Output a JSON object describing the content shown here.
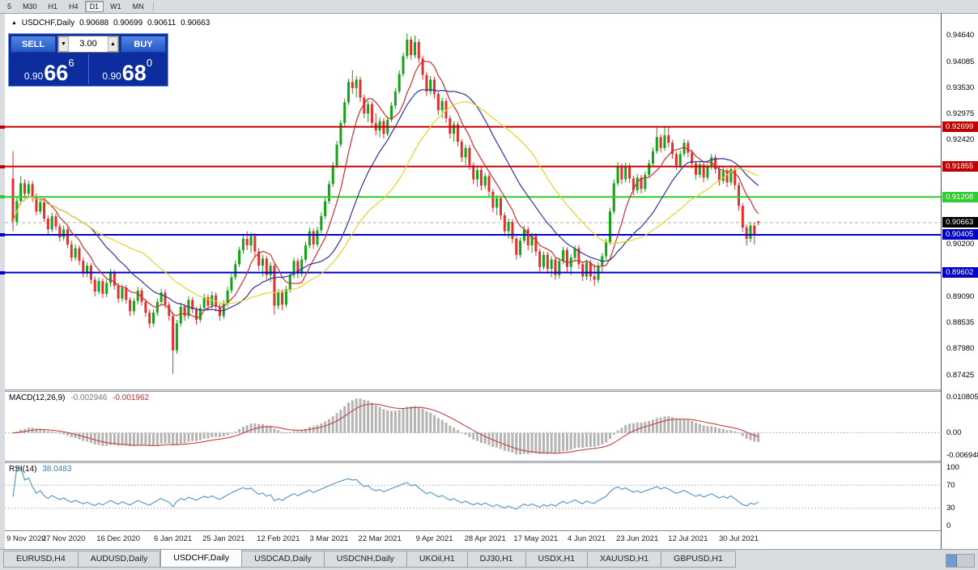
{
  "toolbar": {
    "timeframes": [
      "5",
      "M30",
      "H1",
      "H4",
      "D1",
      "W1",
      "MN"
    ],
    "active": "D1"
  },
  "chart_header": {
    "collapse_icon": "▲",
    "symbol_title": "USDCHF,Daily",
    "open": "0.90688",
    "high": "0.90699",
    "low": "0.90611",
    "close": "0.90663"
  },
  "trade_panel": {
    "sell_label": "SELL",
    "buy_label": "BUY",
    "volume": "3.00",
    "spinner_down": "▼",
    "spinner_up": "▲",
    "sell_price_prefix": "0.90",
    "sell_price_big": "66",
    "sell_price_sup": "6",
    "buy_price_prefix": "0.90",
    "buy_price_big": "68",
    "buy_price_sup": "0"
  },
  "price_axis_ticks": [
    0.9464,
    0.94085,
    0.9353,
    0.92975,
    0.9242,
    0.902,
    0.8909,
    0.88535,
    0.8798,
    0.87425
  ],
  "current_price": {
    "value": 0.90663,
    "label": "0.90663",
    "badge_color": "#000000"
  },
  "indicators": {
    "macd": {
      "title": "MACD(12,26,9)",
      "main_value": "-0.002946",
      "signal_value": "-0.001962",
      "axis": [
        {
          "value": 0.010805,
          "label": "0.010805"
        },
        {
          "value": 0,
          "label": "0.00"
        },
        {
          "value": -0.006948,
          "label": "-0.006948"
        }
      ]
    },
    "rsi": {
      "title": "RSI(14)",
      "value": "38.0483",
      "axis": [
        {
          "value": 100,
          "label": "100"
        },
        {
          "value": 70,
          "label": "70"
        },
        {
          "value": 30,
          "label": "30"
        },
        {
          "value": 0,
          "label": "0"
        }
      ],
      "dashed_levels": [
        70,
        30
      ]
    }
  },
  "colors": {
    "bull": "#16a216",
    "bear": "#e03030",
    "macd_hist": "#b4b4b4",
    "macd_signal": "#c24444",
    "rsi_line": "#4a94c8",
    "dashed": "#b8b8b8"
  },
  "chart_data": {
    "type": "candlestick",
    "symbol": "USDCHF",
    "timeframe": "Daily",
    "ylim": [
      0.8712,
      0.951
    ],
    "bid_line": 0.90663,
    "x_ticks": [
      {
        "index": 0,
        "label": "9 Nov 2020"
      },
      {
        "index": 13,
        "label": "27 Nov 2020"
      },
      {
        "index": 27,
        "label": "16 Dec 2020"
      },
      {
        "index": 41,
        "label": "6 Jan 2021"
      },
      {
        "index": 54,
        "label": "25 Jan 2021"
      },
      {
        "index": 68,
        "label": "12 Feb 2021"
      },
      {
        "index": 81,
        "label": "3 Mar 2021"
      },
      {
        "index": 94,
        "label": "22 Mar 2021"
      },
      {
        "index": 108,
        "label": "9 Apr 2021"
      },
      {
        "index": 121,
        "label": "28 Apr 2021"
      },
      {
        "index": 134,
        "label": "17 May 2021"
      },
      {
        "index": 147,
        "label": "4 Jun 2021"
      },
      {
        "index": 160,
        "label": "23 Jun 2021"
      },
      {
        "index": 173,
        "label": "12 Jul 2021"
      },
      {
        "index": 186,
        "label": "30 Jul 2021"
      }
    ],
    "horizontal_lines": [
      {
        "price": 0.92699,
        "color": "#c00000"
      },
      {
        "price": 0.91855,
        "color": "#c00000"
      },
      {
        "price": 0.91208,
        "color": "#2ecc2e"
      },
      {
        "price": 0.90405,
        "color": "#0000c8"
      },
      {
        "price": 0.89602,
        "color": "#0000c8"
      }
    ],
    "moving_averages": [
      {
        "period": 8,
        "color": "#cc2f2f"
      },
      {
        "period": 20,
        "color": "#333399"
      },
      {
        "period": 34,
        "color": "#e8d22e"
      }
    ],
    "macd": {
      "fast": 12,
      "slow": 26,
      "signal": 9,
      "ylim": [
        -0.0085,
        0.0125
      ]
    },
    "rsi": {
      "period": 14,
      "ylim": [
        -8,
        108
      ]
    },
    "candles": [
      [
        0.916,
        0.9218,
        0.9048,
        0.9068
      ],
      [
        0.9068,
        0.912,
        0.906,
        0.9112
      ],
      [
        0.9112,
        0.9165,
        0.9105,
        0.915
      ],
      [
        0.915,
        0.9158,
        0.9118,
        0.9128
      ],
      [
        0.9128,
        0.9156,
        0.912,
        0.9148
      ],
      [
        0.9148,
        0.9155,
        0.911,
        0.912
      ],
      [
        0.912,
        0.9128,
        0.9082,
        0.909
      ],
      [
        0.909,
        0.9118,
        0.9084,
        0.911
      ],
      [
        0.911,
        0.9116,
        0.9068,
        0.9075
      ],
      [
        0.9075,
        0.9082,
        0.9042,
        0.9052
      ],
      [
        0.9052,
        0.9088,
        0.9046,
        0.908
      ],
      [
        0.908,
        0.9086,
        0.905,
        0.9058
      ],
      [
        0.9058,
        0.9064,
        0.9026,
        0.9035
      ],
      [
        0.9035,
        0.906,
        0.9028,
        0.9052
      ],
      [
        0.9052,
        0.9058,
        0.9012,
        0.902
      ],
      [
        0.902,
        0.9028,
        0.8984,
        0.8992
      ],
      [
        0.8992,
        0.902,
        0.8986,
        0.9012
      ],
      [
        0.9012,
        0.9018,
        0.8976,
        0.8985
      ],
      [
        0.8985,
        0.8992,
        0.895,
        0.8958
      ],
      [
        0.8958,
        0.8982,
        0.895,
        0.8975
      ],
      [
        0.8975,
        0.898,
        0.8936,
        0.8945
      ],
      [
        0.8945,
        0.8952,
        0.891,
        0.892
      ],
      [
        0.892,
        0.895,
        0.8914,
        0.8942
      ],
      [
        0.8942,
        0.8948,
        0.8906,
        0.8915
      ],
      [
        0.8915,
        0.8945,
        0.8908,
        0.8938
      ],
      [
        0.8938,
        0.8968,
        0.893,
        0.896
      ],
      [
        0.896,
        0.8966,
        0.8924,
        0.8932
      ],
      [
        0.8932,
        0.8938,
        0.8896,
        0.8905
      ],
      [
        0.8905,
        0.8935,
        0.8898,
        0.8928
      ],
      [
        0.8928,
        0.8934,
        0.8894,
        0.8902
      ],
      [
        0.8902,
        0.8908,
        0.8868,
        0.8878
      ],
      [
        0.8878,
        0.8906,
        0.887,
        0.89
      ],
      [
        0.89,
        0.893,
        0.8893,
        0.8922
      ],
      [
        0.8922,
        0.8928,
        0.889,
        0.8898
      ],
      [
        0.8898,
        0.8904,
        0.8866,
        0.8875
      ],
      [
        0.8875,
        0.8882,
        0.8842,
        0.8852
      ],
      [
        0.8852,
        0.8882,
        0.8845,
        0.8875
      ],
      [
        0.8875,
        0.8905,
        0.8868,
        0.8898
      ],
      [
        0.8898,
        0.8926,
        0.889,
        0.8918
      ],
      [
        0.8918,
        0.8924,
        0.8884,
        0.8892
      ],
      [
        0.8892,
        0.8898,
        0.8858,
        0.8868
      ],
      [
        0.8868,
        0.8876,
        0.8745,
        0.8795
      ],
      [
        0.8795,
        0.886,
        0.8788,
        0.8852
      ],
      [
        0.8852,
        0.8896,
        0.8845,
        0.8888
      ],
      [
        0.8888,
        0.8894,
        0.8858,
        0.8868
      ],
      [
        0.8868,
        0.891,
        0.8862,
        0.8902
      ],
      [
        0.8902,
        0.8908,
        0.8874,
        0.8882
      ],
      [
        0.8882,
        0.8888,
        0.885,
        0.886
      ],
      [
        0.886,
        0.8892,
        0.8854,
        0.8885
      ],
      [
        0.8885,
        0.8915,
        0.8878,
        0.8908
      ],
      [
        0.8908,
        0.8914,
        0.888,
        0.889
      ],
      [
        0.889,
        0.892,
        0.8884,
        0.8912
      ],
      [
        0.8912,
        0.8918,
        0.8878,
        0.8888
      ],
      [
        0.8888,
        0.8894,
        0.8858,
        0.8868
      ],
      [
        0.8868,
        0.8902,
        0.8862,
        0.8895
      ],
      [
        0.8895,
        0.893,
        0.8888,
        0.8922
      ],
      [
        0.8922,
        0.8958,
        0.8916,
        0.895
      ],
      [
        0.895,
        0.8986,
        0.8944,
        0.8978
      ],
      [
        0.8978,
        0.9015,
        0.8972,
        0.9008
      ],
      [
        0.9008,
        0.904,
        0.9,
        0.9032
      ],
      [
        0.9032,
        0.9048,
        0.9008,
        0.9018
      ],
      [
        0.9018,
        0.9045,
        0.9002,
        0.9038
      ],
      [
        0.9038,
        0.9044,
        0.8995,
        0.9005
      ],
      [
        0.9005,
        0.9012,
        0.8965,
        0.8975
      ],
      [
        0.8975,
        0.8998,
        0.8952,
        0.899
      ],
      [
        0.899,
        0.8996,
        0.8945,
        0.8955
      ],
      [
        0.8955,
        0.8982,
        0.894,
        0.8975
      ],
      [
        0.8975,
        0.8981,
        0.8871,
        0.889
      ],
      [
        0.889,
        0.8925,
        0.8882,
        0.8918
      ],
      [
        0.8918,
        0.8924,
        0.888,
        0.8892
      ],
      [
        0.8892,
        0.8932,
        0.8886,
        0.8925
      ],
      [
        0.8925,
        0.8962,
        0.8918,
        0.8955
      ],
      [
        0.8955,
        0.8992,
        0.8948,
        0.8985
      ],
      [
        0.8985,
        0.8991,
        0.8948,
        0.8958
      ],
      [
        0.8958,
        0.8996,
        0.8952,
        0.8988
      ],
      [
        0.8988,
        0.9026,
        0.8982,
        0.9018
      ],
      [
        0.9018,
        0.9056,
        0.9012,
        0.9048
      ],
      [
        0.9048,
        0.9054,
        0.901,
        0.902
      ],
      [
        0.902,
        0.9058,
        0.9014,
        0.905
      ],
      [
        0.905,
        0.9088,
        0.9044,
        0.908
      ],
      [
        0.908,
        0.912,
        0.9074,
        0.9112
      ],
      [
        0.9112,
        0.9155,
        0.9106,
        0.9148
      ],
      [
        0.9148,
        0.9195,
        0.9142,
        0.9188
      ],
      [
        0.9188,
        0.924,
        0.9182,
        0.9232
      ],
      [
        0.9232,
        0.9285,
        0.9226,
        0.9278
      ],
      [
        0.9278,
        0.933,
        0.9272,
        0.9322
      ],
      [
        0.9322,
        0.9372,
        0.9316,
        0.9365
      ],
      [
        0.9365,
        0.939,
        0.934,
        0.9352
      ],
      [
        0.9352,
        0.9378,
        0.9332,
        0.937
      ],
      [
        0.937,
        0.9376,
        0.9322,
        0.9332
      ],
      [
        0.9332,
        0.9338,
        0.9288,
        0.9298
      ],
      [
        0.9298,
        0.9325,
        0.928,
        0.9318
      ],
      [
        0.9318,
        0.9324,
        0.9268,
        0.9278
      ],
      [
        0.9278,
        0.9298,
        0.9252,
        0.9262
      ],
      [
        0.9262,
        0.929,
        0.9248,
        0.9282
      ],
      [
        0.9282,
        0.9288,
        0.9245,
        0.9255
      ],
      [
        0.9255,
        0.9292,
        0.925,
        0.9285
      ],
      [
        0.9285,
        0.9322,
        0.928,
        0.9315
      ],
      [
        0.9315,
        0.9352,
        0.9308,
        0.9345
      ],
      [
        0.9345,
        0.939,
        0.934,
        0.9382
      ],
      [
        0.9382,
        0.9428,
        0.9376,
        0.942
      ],
      [
        0.942,
        0.9468,
        0.9414,
        0.9455
      ],
      [
        0.9455,
        0.9462,
        0.9412,
        0.9422
      ],
      [
        0.9422,
        0.9464,
        0.9416,
        0.945
      ],
      [
        0.945,
        0.9456,
        0.9405,
        0.9415
      ],
      [
        0.9415,
        0.9421,
        0.937,
        0.938
      ],
      [
        0.938,
        0.9386,
        0.9335,
        0.9345
      ],
      [
        0.9345,
        0.9378,
        0.9338,
        0.937
      ],
      [
        0.937,
        0.9376,
        0.933,
        0.934
      ],
      [
        0.934,
        0.9346,
        0.9295,
        0.9305
      ],
      [
        0.9305,
        0.9332,
        0.9288,
        0.9325
      ],
      [
        0.9325,
        0.9331,
        0.9278,
        0.9288
      ],
      [
        0.9288,
        0.9294,
        0.9245,
        0.9255
      ],
      [
        0.9255,
        0.9282,
        0.9238,
        0.9275
      ],
      [
        0.9275,
        0.9281,
        0.9228,
        0.9238
      ],
      [
        0.9238,
        0.9244,
        0.9195,
        0.9205
      ],
      [
        0.9205,
        0.9232,
        0.9188,
        0.9225
      ],
      [
        0.9225,
        0.9231,
        0.9178,
        0.9188
      ],
      [
        0.9188,
        0.9194,
        0.9148,
        0.9158
      ],
      [
        0.9158,
        0.9185,
        0.9142,
        0.9178
      ],
      [
        0.9178,
        0.9184,
        0.9135,
        0.9145
      ],
      [
        0.9145,
        0.9172,
        0.9138,
        0.9165
      ],
      [
        0.9165,
        0.9171,
        0.9122,
        0.9132
      ],
      [
        0.9132,
        0.9138,
        0.9088,
        0.9098
      ],
      [
        0.9098,
        0.9125,
        0.9082,
        0.9118
      ],
      [
        0.9118,
        0.9124,
        0.9072,
        0.9082
      ],
      [
        0.9082,
        0.9088,
        0.9038,
        0.9048
      ],
      [
        0.9048,
        0.9075,
        0.9032,
        0.9068
      ],
      [
        0.9068,
        0.9074,
        0.9022,
        0.9032
      ],
      [
        0.9032,
        0.9038,
        0.8988,
        0.8998
      ],
      [
        0.8998,
        0.9035,
        0.8992,
        0.9028
      ],
      [
        0.9028,
        0.906,
        0.9022,
        0.9052
      ],
      [
        0.9052,
        0.9058,
        0.9008,
        0.9018
      ],
      [
        0.9018,
        0.9045,
        0.9002,
        0.9038
      ],
      [
        0.9038,
        0.9044,
        0.8995,
        0.9005
      ],
      [
        0.9005,
        0.9011,
        0.8962,
        0.8972
      ],
      [
        0.8972,
        0.9005,
        0.8966,
        0.8998
      ],
      [
        0.8998,
        0.9004,
        0.8958,
        0.8968
      ],
      [
        0.8968,
        0.8995,
        0.895,
        0.8988
      ],
      [
        0.8988,
        0.8994,
        0.8945,
        0.8955
      ],
      [
        0.8955,
        0.8992,
        0.8948,
        0.8985
      ],
      [
        0.8985,
        0.9015,
        0.8978,
        0.9008
      ],
      [
        0.9008,
        0.9014,
        0.8962,
        0.8972
      ],
      [
        0.8972,
        0.8999,
        0.8955,
        0.8992
      ],
      [
        0.8992,
        0.9018,
        0.8985,
        0.9012
      ],
      [
        0.9012,
        0.9018,
        0.8968,
        0.8978
      ],
      [
        0.8978,
        0.8984,
        0.8942,
        0.8952
      ],
      [
        0.8952,
        0.8988,
        0.8945,
        0.8982
      ],
      [
        0.8982,
        0.8988,
        0.8942,
        0.8952
      ],
      [
        0.8952,
        0.8978,
        0.8932,
        0.8945
      ],
      [
        0.8945,
        0.8982,
        0.8938,
        0.8975
      ],
      [
        0.8975,
        0.9002,
        0.8958,
        0.8995
      ],
      [
        0.8995,
        0.9032,
        0.8988,
        0.9025
      ],
      [
        0.9025,
        0.9098,
        0.9019,
        0.909
      ],
      [
        0.909,
        0.9158,
        0.9084,
        0.915
      ],
      [
        0.915,
        0.9195,
        0.9144,
        0.9186
      ],
      [
        0.9186,
        0.9192,
        0.9148,
        0.9158
      ],
      [
        0.9158,
        0.9194,
        0.9152,
        0.9186
      ],
      [
        0.9186,
        0.9192,
        0.915,
        0.916
      ],
      [
        0.916,
        0.9166,
        0.9125,
        0.9135
      ],
      [
        0.9135,
        0.917,
        0.9128,
        0.9162
      ],
      [
        0.9162,
        0.9168,
        0.9128,
        0.9138
      ],
      [
        0.9138,
        0.9175,
        0.9132,
        0.9168
      ],
      [
        0.9168,
        0.92,
        0.9162,
        0.9192
      ],
      [
        0.9192,
        0.9226,
        0.9186,
        0.9218
      ],
      [
        0.9218,
        0.9268,
        0.9212,
        0.9248
      ],
      [
        0.9248,
        0.9254,
        0.9215,
        0.9225
      ],
      [
        0.9225,
        0.9271,
        0.9219,
        0.9252
      ],
      [
        0.9252,
        0.927,
        0.9226,
        0.9236
      ],
      [
        0.9236,
        0.9242,
        0.9202,
        0.9212
      ],
      [
        0.9212,
        0.9218,
        0.9178,
        0.9188
      ],
      [
        0.9188,
        0.922,
        0.9182,
        0.9212
      ],
      [
        0.9212,
        0.9244,
        0.9206,
        0.9236
      ],
      [
        0.9236,
        0.9242,
        0.9205,
        0.9215
      ],
      [
        0.9215,
        0.9221,
        0.9182,
        0.9192
      ],
      [
        0.9192,
        0.9198,
        0.9158,
        0.9168
      ],
      [
        0.9168,
        0.9196,
        0.9162,
        0.919
      ],
      [
        0.919,
        0.9196,
        0.9152,
        0.9162
      ],
      [
        0.9162,
        0.9192,
        0.9156,
        0.9185
      ],
      [
        0.9185,
        0.9212,
        0.9179,
        0.9205
      ],
      [
        0.9205,
        0.9211,
        0.917,
        0.918
      ],
      [
        0.918,
        0.9186,
        0.9145,
        0.9155
      ],
      [
        0.9155,
        0.9184,
        0.9149,
        0.9176
      ],
      [
        0.9176,
        0.9182,
        0.9142,
        0.9152
      ],
      [
        0.9152,
        0.9188,
        0.9146,
        0.918
      ],
      [
        0.918,
        0.9186,
        0.9136,
        0.9146
      ],
      [
        0.9146,
        0.9152,
        0.9092,
        0.9102
      ],
      [
        0.9102,
        0.9108,
        0.9046,
        0.9056
      ],
      [
        0.9056,
        0.9062,
        0.9018,
        0.9032
      ],
      [
        0.9032,
        0.9068,
        0.9025,
        0.906
      ],
      [
        0.906,
        0.9066,
        0.902,
        0.904
      ],
      [
        0.90688,
        0.90699,
        0.90611,
        0.90663
      ]
    ]
  },
  "tabs": {
    "items": [
      "EURUSD,H4",
      "AUDUSD,Daily",
      "USDCHF,Daily",
      "USDCAD,Daily",
      "USDCNH,Daily",
      "UKOil,H1",
      "DJ30,H1",
      "USDX,H1",
      "XAUUSD,H1",
      "GBPUSD,H1"
    ],
    "active_index": 2
  }
}
